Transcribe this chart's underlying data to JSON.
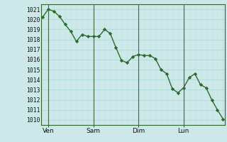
{
  "y_values": [
    1020.2,
    1021.0,
    1020.8,
    1020.3,
    1019.5,
    1018.8,
    1017.8,
    1018.5,
    1018.3,
    1018.3,
    1018.3,
    1019.0,
    1018.6,
    1017.2,
    1015.9,
    1015.7,
    1016.3,
    1016.5,
    1016.4,
    1016.4,
    1016.1,
    1015.0,
    1014.6,
    1013.1,
    1012.7,
    1013.2,
    1014.2,
    1014.6,
    1013.5,
    1013.2,
    1012.0,
    1011.0,
    1010.1
  ],
  "x_ticks_pos": [
    1,
    9,
    17,
    25
  ],
  "x_tick_labels": [
    "Ven",
    "Sam",
    "Dim",
    "Lun"
  ],
  "y_min": 1010,
  "y_max": 1021,
  "line_color": "#2d6a2d",
  "marker_color": "#2d6a2d",
  "bg_color": "#cce8e8",
  "grid_color_h": "#aad4d4",
  "grid_color_v": "#c4e0e0",
  "axis_color": "#336633",
  "vline_color": "#446644",
  "vline_positions": [
    1,
    9,
    17,
    25
  ]
}
